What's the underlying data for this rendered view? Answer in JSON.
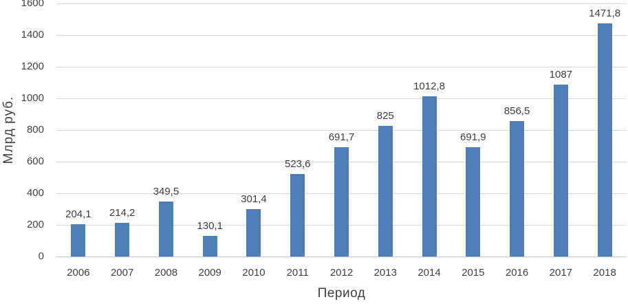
{
  "chart_data": {
    "type": "bar",
    "title": "",
    "categories": [
      "2006",
      "2007",
      "2008",
      "2009",
      "2010",
      "2011",
      "2012",
      "2013",
      "2014",
      "2015",
      "2016",
      "2017",
      "2018"
    ],
    "values": [
      204.1,
      214.2,
      349.5,
      130.1,
      301.4,
      523.6,
      691.7,
      825,
      1012.8,
      691.9,
      856.5,
      1087,
      1471.8
    ],
    "value_labels": [
      "204,1",
      "214,2",
      "349,5",
      "130,1",
      "301,4",
      "523,6",
      "691,7",
      "825",
      "1012,8",
      "691,9",
      "856,5",
      "1087",
      "1471,8"
    ],
    "xlabel": "Период",
    "ylabel": "Млрд руб.",
    "ylim": [
      0,
      1600
    ],
    "ytick_step": 200,
    "ytick_labels": [
      "0",
      "200",
      "400",
      "600",
      "800",
      "1000",
      "1200",
      "1400",
      "1600"
    ],
    "grid": true,
    "legend": false,
    "bar_color": "#4e7eb8",
    "gridline_color": "#d9d9d9",
    "text_color": "#404040"
  }
}
